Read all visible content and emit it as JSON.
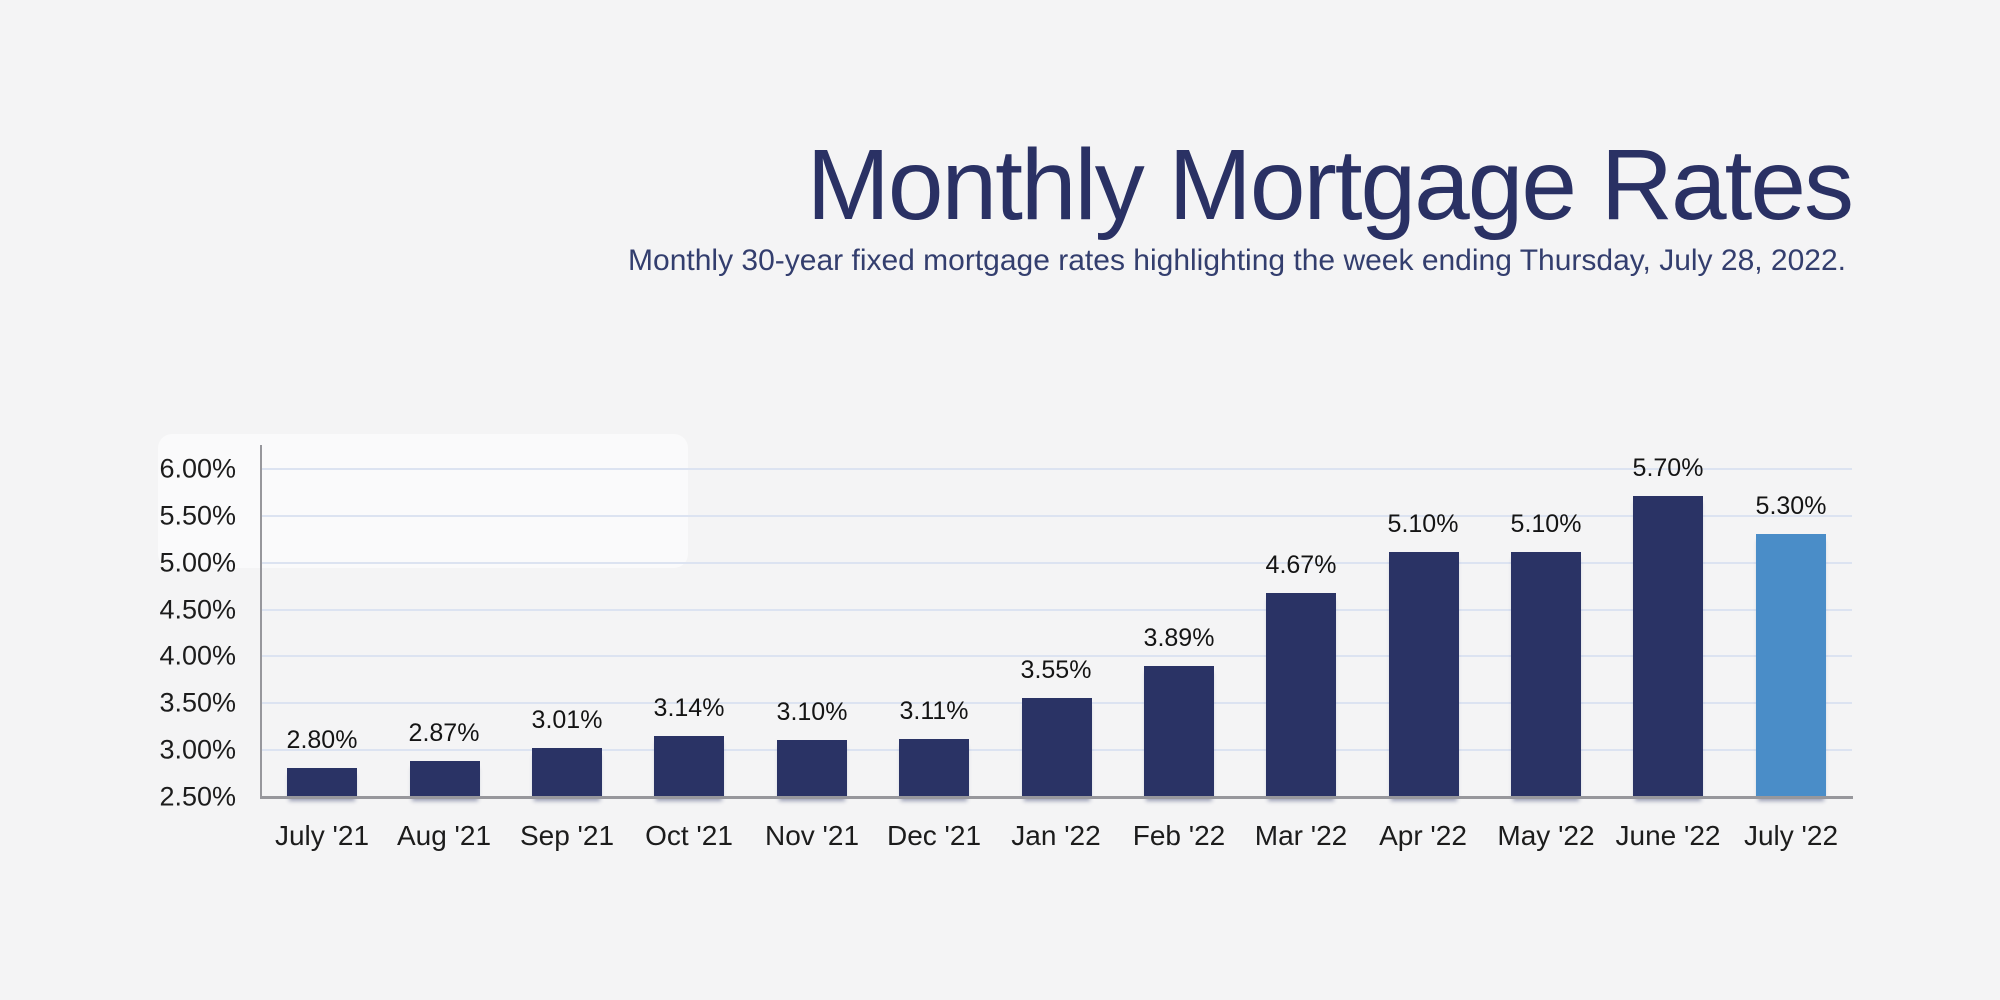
{
  "header": {
    "title": "Monthly Mortgage Rates",
    "subtitle": "Monthly 30-year fixed mortgage rates highlighting the week ending Thursday, July 28, 2022."
  },
  "colors": {
    "background": "#f4f4f5",
    "title": "#2a3164",
    "subtitle": "#333e6e",
    "bar": "#2a3365",
    "highlight_bar": "#4a8dc8",
    "gridline": "#dce3f1",
    "axis": "#97979c",
    "tick_label": "#1c1c1c",
    "value_label": "#141414"
  },
  "chart_data": {
    "type": "bar",
    "title": "Monthly Mortgage Rates",
    "subtitle": "Monthly 30-year fixed mortgage rates highlighting the week ending Thursday, July 28, 2022.",
    "categories": [
      "July '21",
      "Aug '21",
      "Sep '21",
      "Oct '21",
      "Nov '21",
      "Dec '21",
      "Jan '22",
      "Feb '22",
      "Mar '22",
      "Apr '22",
      "May '22",
      "June '22",
      "July '22"
    ],
    "series": [
      {
        "name": "30-year fixed mortgage rate",
        "values": [
          2.8,
          2.87,
          3.01,
          3.14,
          3.1,
          3.11,
          3.55,
          3.89,
          4.67,
          5.1,
          5.1,
          5.7,
          5.3
        ]
      }
    ],
    "value_labels": [
      "2.80%",
      "2.87%",
      "3.01%",
      "3.14%",
      "3.10%",
      "3.11%",
      "3.55%",
      "3.89%",
      "4.67%",
      "5.10%",
      "5.10%",
      "5.70%",
      "5.30%"
    ],
    "highlight_index": 12,
    "highlight_category": "July '22",
    "xlabel": "",
    "ylabel": "",
    "ylim": [
      2.5,
      6.0
    ],
    "yticks": [
      {
        "value": 6.0,
        "label": "6.00%"
      },
      {
        "value": 5.5,
        "label": "5.50%"
      },
      {
        "value": 5.0,
        "label": "5.00%"
      },
      {
        "value": 4.5,
        "label": "4.50%"
      },
      {
        "value": 4.0,
        "label": "4.00%"
      },
      {
        "value": 3.5,
        "label": "3.50%"
      },
      {
        "value": 3.0,
        "label": "3.00%"
      },
      {
        "value": 2.5,
        "label": "2.50%"
      }
    ],
    "grid": "on",
    "legend": "none"
  }
}
